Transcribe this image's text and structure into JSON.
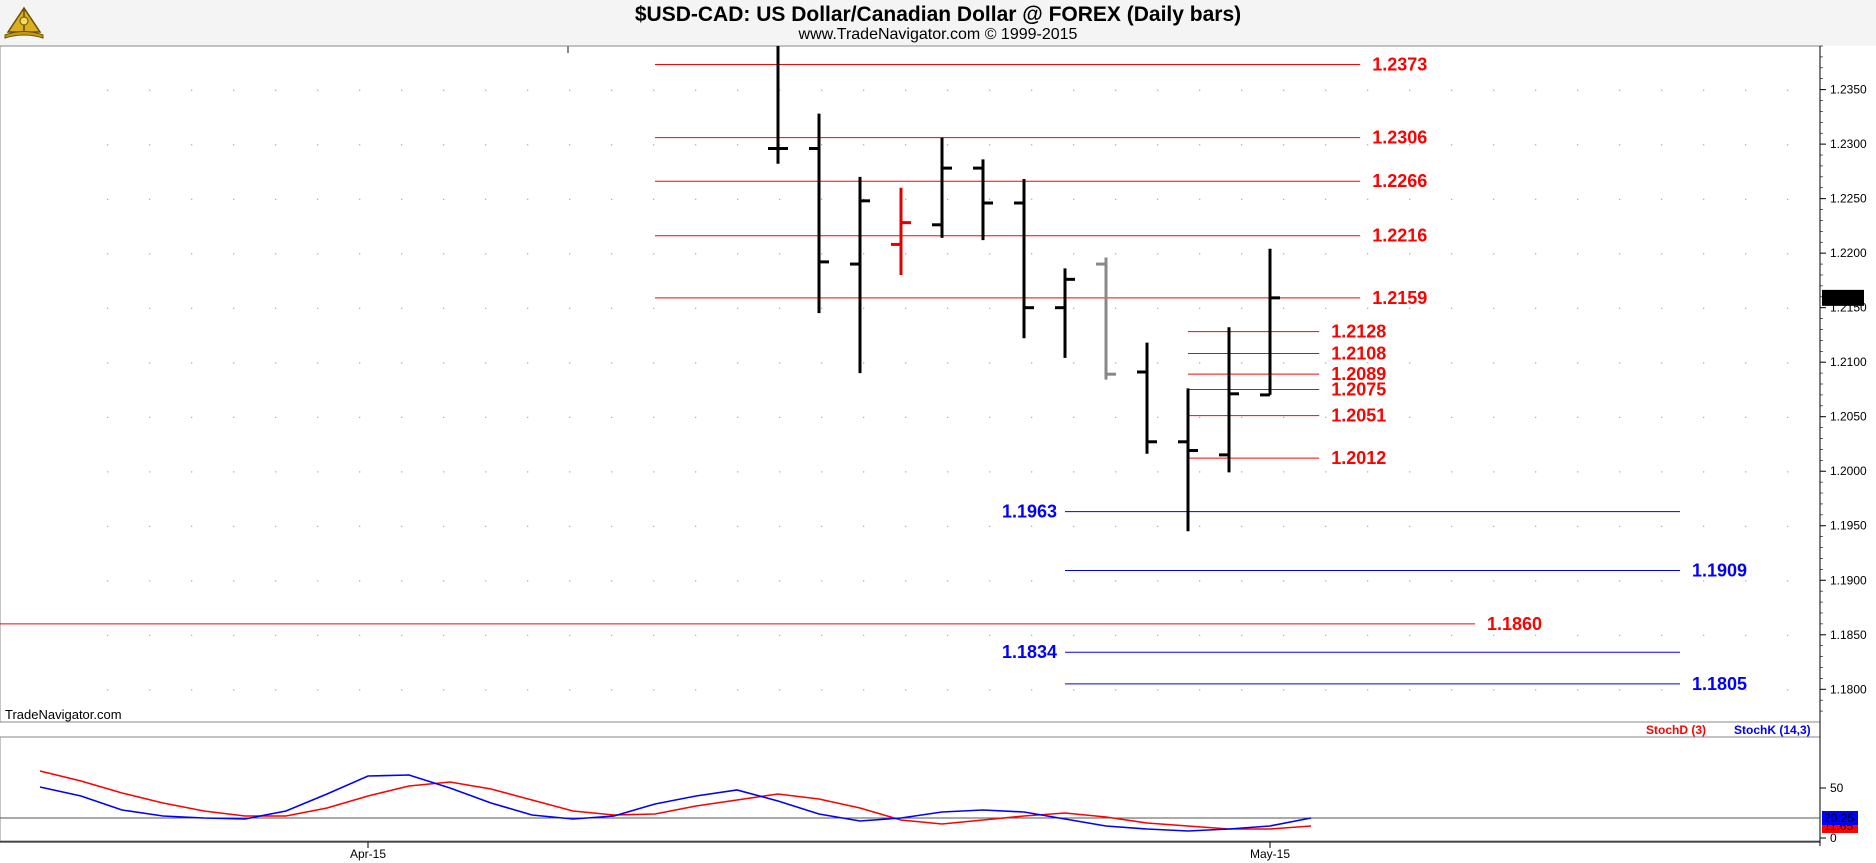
{
  "title": "$USD-CAD:  US Dollar/Canadian Dollar @ FOREX  (Daily bars)",
  "subtitle": "www.TradeNavigator.com © 1999-2015",
  "watermark": "TradeNavigator.com",
  "chart_data": [
    {
      "type": "ohlc",
      "yaxis": {
        "range": [
          1.177,
          1.239
        ],
        "ticks": [
          1.235,
          1.23,
          1.225,
          1.22,
          1.215,
          1.21,
          1.205,
          1.2,
          1.195,
          1.19,
          1.185,
          1.18
        ]
      },
      "xaxis": {
        "labels": [
          {
            "label": "Apr-15",
            "bar_index": -10
          },
          {
            "label": "May-15",
            "bar_index": 12
          }
        ]
      },
      "last_price": {
        "value": 1.2159,
        "label": "1.2159"
      },
      "bars": [
        {
          "open": 1.2296,
          "high": 1.239,
          "low": 1.2282,
          "close": 1.2296,
          "color": "#000000"
        },
        {
          "open": 1.2296,
          "high": 1.2328,
          "low": 1.2145,
          "close": 1.2192,
          "color": "#000000"
        },
        {
          "open": 1.219,
          "high": 1.227,
          "low": 1.209,
          "close": 1.2248,
          "color": "#000000"
        },
        {
          "open": 1.2208,
          "high": 1.226,
          "low": 1.218,
          "close": 1.2228,
          "color": "#e00000"
        },
        {
          "open": 1.2226,
          "high": 1.2306,
          "low": 1.2214,
          "close": 1.2278,
          "color": "#000000"
        },
        {
          "open": 1.2278,
          "high": 1.2286,
          "low": 1.2212,
          "close": 1.2246,
          "color": "#000000"
        },
        {
          "open": 1.2246,
          "high": 1.2268,
          "low": 1.2122,
          "close": 1.215,
          "color": "#000000"
        },
        {
          "open": 1.215,
          "high": 1.2186,
          "low": 1.2104,
          "close": 1.2176,
          "color": "#000000"
        },
        {
          "open": 1.219,
          "high": 1.2196,
          "low": 1.2084,
          "close": 1.2089,
          "color": "#888888"
        },
        {
          "open": 1.2091,
          "high": 1.2118,
          "low": 1.2016,
          "close": 1.2027,
          "color": "#000000"
        },
        {
          "open": 1.2027,
          "high": 1.2076,
          "low": 1.1945,
          "close": 1.2019,
          "color": "#000000"
        },
        {
          "open": 1.2015,
          "high": 1.2132,
          "low": 1.1999,
          "close": 1.2071,
          "color": "#000000"
        },
        {
          "open": 1.207,
          "high": 1.2204,
          "low": 1.207,
          "close": 1.2159,
          "color": "#000000"
        }
      ],
      "levels": [
        {
          "value": 1.2373,
          "label": "1.2373",
          "color": "#ff0000",
          "from_bar": -3,
          "to_bar": 14.2,
          "label_side": "right"
        },
        {
          "value": 1.2306,
          "label": "1.2306",
          "color": "#ff0000",
          "from_bar": -3,
          "to_bar": 14.2,
          "label_side": "right"
        },
        {
          "value": 1.2266,
          "label": "1.2266",
          "color": "#ff0000",
          "from_bar": -3,
          "to_bar": 14.2,
          "label_side": "right"
        },
        {
          "value": 1.2216,
          "label": "1.2216",
          "color": "#ff0000",
          "from_bar": -3,
          "to_bar": 14.2,
          "label_side": "right"
        },
        {
          "value": 1.2159,
          "label": "1.2159",
          "color": "#ff0000",
          "from_bar": -3,
          "to_bar": 14.2,
          "label_side": "right"
        },
        {
          "value": 1.2128,
          "label": "1.2128",
          "color": "#ff0000",
          "from_bar": 10,
          "to_bar": 13.2,
          "label_side": "right"
        },
        {
          "value": 1.2108,
          "label": "1.2108",
          "color": "#ff0000",
          "from_bar": 10,
          "to_bar": 13.2,
          "label_side": "right"
        },
        {
          "value": 1.2089,
          "label": "1.2089",
          "color": "#ff0000",
          "from_bar": 10,
          "to_bar": 13.2,
          "label_side": "right"
        },
        {
          "value": 1.2075,
          "label": "1.2075",
          "color": "#ff0000",
          "from_bar": 10,
          "to_bar": 13.2,
          "label_side": "right"
        },
        {
          "value": 1.2051,
          "label": "1.2051",
          "color": "#ff0000",
          "from_bar": 10,
          "to_bar": 13.2,
          "label_side": "right"
        },
        {
          "value": 1.2012,
          "label": "1.2012",
          "color": "#ff0000",
          "from_bar": 10,
          "to_bar": 13.2,
          "label_side": "right"
        },
        {
          "value": 1.1963,
          "label": "1.1963",
          "color": "#0000ff",
          "from_bar": 7,
          "to_bar": 22,
          "label_side": "left"
        },
        {
          "value": 1.1909,
          "label": "1.1909",
          "color": "#0000ff",
          "from_bar": 7,
          "to_bar": 22,
          "label_side": "right"
        },
        {
          "value": 1.186,
          "label": "1.1860",
          "color": "#ff0000",
          "from_bar": -19,
          "to_bar": 17,
          "label_side": "right"
        },
        {
          "value": 1.1834,
          "label": "1.1834",
          "color": "#0000ff",
          "from_bar": 7,
          "to_bar": 22,
          "label_side": "left"
        },
        {
          "value": 1.1805,
          "label": "1.1805",
          "color": "#0000ff",
          "from_bar": 7,
          "to_bar": 22,
          "label_side": "right"
        }
      ]
    },
    {
      "type": "line",
      "yaxis": {
        "range": [
          0,
          100
        ],
        "ticks": [
          50,
          0
        ]
      },
      "legend": [
        {
          "name": "StochD (3)",
          "color": "#ff0000"
        },
        {
          "name": "StochK (14,3)",
          "color": "#0000ff"
        }
      ],
      "reference_lines": [
        20
      ],
      "series": [
        {
          "name": "StochD (3)",
          "color": "#ff0000",
          "last_label": "11.65",
          "x": [
            -18,
            -17,
            -16,
            -15,
            -14,
            -13,
            -12,
            -11,
            -10,
            -9,
            -8,
            -7,
            -6,
            -5,
            -4,
            -3,
            -2,
            -1,
            0,
            1,
            2,
            3,
            4,
            5,
            6,
            7,
            8,
            9,
            10,
            11,
            12,
            13
          ],
          "values": [
            67,
            57,
            45,
            35,
            27,
            22,
            22,
            30,
            42,
            52,
            56,
            49,
            38,
            27,
            23,
            24,
            32,
            38,
            44,
            39,
            30,
            18,
            14,
            18,
            22,
            25,
            21,
            15,
            12,
            9,
            9,
            12
          ]
        },
        {
          "name": "StochK (14,3)",
          "color": "#0000ff",
          "last_label": "20.25",
          "x": [
            -18,
            -17,
            -16,
            -15,
            -14,
            -13,
            -12,
            -11,
            -10,
            -9,
            -8,
            -7,
            -6,
            -5,
            -4,
            -3,
            -2,
            -1,
            0,
            1,
            2,
            3,
            4,
            5,
            6,
            7,
            8,
            9,
            10,
            11,
            12,
            13
          ],
          "values": [
            51,
            42,
            28,
            22,
            20,
            19,
            27,
            44,
            62,
            63,
            50,
            35,
            23,
            19,
            22,
            34,
            42,
            48,
            37,
            24,
            17,
            20,
            26,
            28,
            26,
            19,
            12,
            9,
            7,
            9,
            12,
            20
          ]
        }
      ]
    }
  ]
}
